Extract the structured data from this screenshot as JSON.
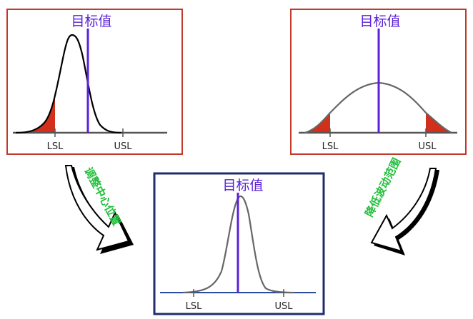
{
  "colors": {
    "panel_left_border": "#c0392b",
    "panel_right_border": "#c0392b",
    "panel_bottom_border": "#1f2d6b",
    "target_line": "#5a20d8",
    "tail_fill": "#d0301c",
    "curve_left": "#000000",
    "curve_soft": "#666666",
    "arrow_text": "#1fbf3a"
  },
  "panels": {
    "left": {
      "target_label": "目标值",
      "lsl_label": "LSL",
      "usl_label": "USL"
    },
    "right": {
      "target_label": "目标值",
      "lsl_label": "LSL",
      "usl_label": "USL"
    },
    "bottom": {
      "target_label": "目标值",
      "lsl_label": "LSL",
      "usl_label": "USL"
    }
  },
  "arrows": {
    "left": {
      "label": "调整中心位置"
    },
    "right": {
      "label": "降低波动范围"
    }
  }
}
